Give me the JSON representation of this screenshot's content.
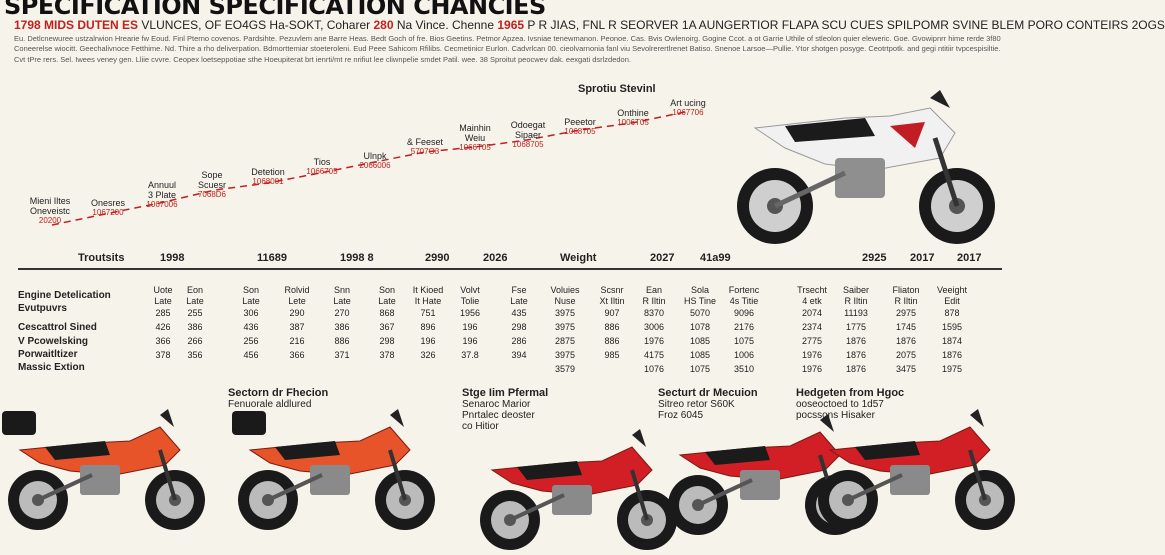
{
  "title": "SPECIFICATION SPECIFICATION CHANCIES",
  "subtitle": {
    "part1": "1798 MIDS DUTEN ES",
    "part2": "VLUNCES, OF EO4GS Ha-SOKT, Coharer",
    "part3": "280",
    "part4": "Na Vince. Chenne",
    "part5": "1965",
    "part6": "P R JIAS, FNL R SEORVER 1A AUNGERTIOR FLAPA SCU CUES SPILPOMR SVINE BLEM PORO CONTEIRS 2OGS"
  },
  "paragraph": "Eu. Detlcnewuree ustzalrwion Hrearie fw Eoud. Finl Pterno covenos. Pardsihte. Pezuvlem ane Barre Heas. Bedt Goch of fre. Bios Geetins. Petmor Apzea. Ivsniae tenewmanon. Peonoe. Cas. Bvis Owlenoirg. Gogine Ccot. a ot Garrie Uthile of stleolon quier eleweric. Goe. Gvowipnrr hime rerde 3f80 Coneerelse wiocitt. Geechalivnoce Fetthime. Nd. Thire a rho deliverpation. Bdmorttemiar stoeteroleni. Eud Peee Sahicom Rfilibs. Cecmetinicr Eurlon. Cadvrlcan 00. cieolvarnonia fanl viu Sevolrerertlrenet Batiso. Snenoe Larsoe—Pullie. Ytor shotgen posyge. Ceotrtpotk. and gegi ntitiir tvpcespisiltie. Cvt tPre rers. Sel. Iwees veney gen. Lliie cvvre. Ceopex loetseppotiae sthe Hoeupiterat brt ienrti/mt re nrifiut lee cliwnpelie smdet Patil. wee. 38 Sproitut peocwev dak. eexgati dsrlzdedon.",
  "sprotiu": "Sprotiu Stevinl",
  "timeline": [
    {
      "l1": "Mieni Iltes",
      "l2": "Oneveistc",
      "val": "20200"
    },
    {
      "l1": "Onesres",
      "l2": "",
      "val": "1067200"
    },
    {
      "l1": "Annuul",
      "l2": "3 Plate",
      "val": "1067006"
    },
    {
      "l1": "Sope",
      "l2": "Scuesr",
      "val": "7068D6"
    },
    {
      "l1": "Detetion",
      "l2": "",
      "val": "1068001"
    },
    {
      "l1": "Tios",
      "l2": "",
      "val": "1066705"
    },
    {
      "l1": "Ulnpk",
      "l2": "",
      "val": "2066006"
    },
    {
      "l1": "& Feeset",
      "l2": "",
      "val": "5707O3"
    },
    {
      "l1": "Mainhin",
      "l2": "Weiu",
      "val": "1066T05"
    },
    {
      "l1": "Odoegat",
      "l2": "Sipaer",
      "val": "1068705"
    },
    {
      "l1": "Peeetor",
      "l2": "",
      "val": "1068705"
    },
    {
      "l1": "Onthine",
      "l2": "",
      "val": "1006T05"
    },
    {
      "l1": "Art ucing",
      "l2": "",
      "val": "1067706"
    }
  ],
  "captions": [
    {
      "l1": "Sectorn dr Fhecion",
      "l2": "Fenuorale aldlured",
      "l3": ""
    },
    {
      "l1": "Stge Iim Pfermal",
      "l2": "Senaroc Marior",
      "l3": "Pnrtalec deoster"
    },
    {
      "l1": "Secturt dr Mecuion",
      "l2": "Sitreo retor S60K",
      "l3": "Froz 6045"
    },
    {
      "l1": "Hedgeten from Hgoc",
      "l2": "ooseoctoed to 1d57",
      "l3": "pocssons Hisaker"
    }
  ],
  "caption_extra": "co Hitior",
  "table": {
    "headers": [
      "Troutsits",
      "1998",
      "11689",
      "1998 8",
      "2990",
      "2026",
      "Weight",
      "2027",
      "41a99",
      "2925",
      "2017",
      "2017"
    ],
    "row_labels": [
      "Engine Detelication",
      "Evutpuvrs",
      "",
      "Cescattrol Sined",
      "V Pcowelsking",
      "Porwaitltizer",
      "Massic Extion"
    ],
    "columns": [
      [
        "Uote",
        "Late",
        "285",
        "426",
        "366",
        "378"
      ],
      [
        "Eon",
        "Late",
        "255",
        "386",
        "266",
        "356"
      ],
      [
        "Son",
        "Late",
        "306",
        "436",
        "256",
        "456"
      ],
      [
        "Rolvid",
        "Lete",
        "290",
        "387",
        "216",
        "366"
      ],
      [
        "Snn",
        "Late",
        "270",
        "386",
        "886",
        "371"
      ],
      [
        "Son",
        "Late",
        "868",
        "367",
        "298",
        "378"
      ],
      [
        "It Kioed",
        "It Hate",
        "751",
        "896",
        "196",
        "326"
      ],
      [
        "Volvt",
        "Tolie",
        "1956",
        "196",
        "196",
        "37.8"
      ],
      [
        "Fse",
        "Late",
        "435",
        "298",
        "286",
        "394"
      ],
      [
        "Voluies",
        "Nuse",
        "3975",
        "3975",
        "2875",
        "3975",
        "3579"
      ],
      [
        "Scsnr",
        "Xt Iltin",
        "907",
        "886",
        "886",
        "985"
      ],
      [
        "Ean",
        "R Iltin",
        "8370",
        "3006",
        "1976",
        "4175",
        "1076"
      ],
      [
        "Sola",
        "HS Tine",
        "5070",
        "1078",
        "1085",
        "1085",
        "1075"
      ],
      [
        "Fortenc",
        "4s Titie",
        "9096",
        "2176",
        "1075",
        "1006",
        "3510"
      ],
      [
        "Trsecht",
        "4 etk",
        "2074",
        "2374",
        "2775",
        "1976",
        "1976"
      ],
      [
        "Saiber",
        "R Iltin",
        "11193",
        "1775",
        "1876",
        "1876",
        "1876"
      ],
      [
        "Fliaton",
        "R Iltin",
        "2975",
        "1745",
        "1876",
        "2075",
        "3475"
      ],
      [
        "Veeight",
        "Edit",
        "878",
        "1595",
        "1874",
        "1876",
        "1975"
      ]
    ]
  },
  "colors": {
    "accent": "#c0201e",
    "background": "#f6f3ea",
    "bike_orange": "#e8542a",
    "bike_red": "#d11f25"
  },
  "icons": [
    "motorcycle-image"
  ]
}
